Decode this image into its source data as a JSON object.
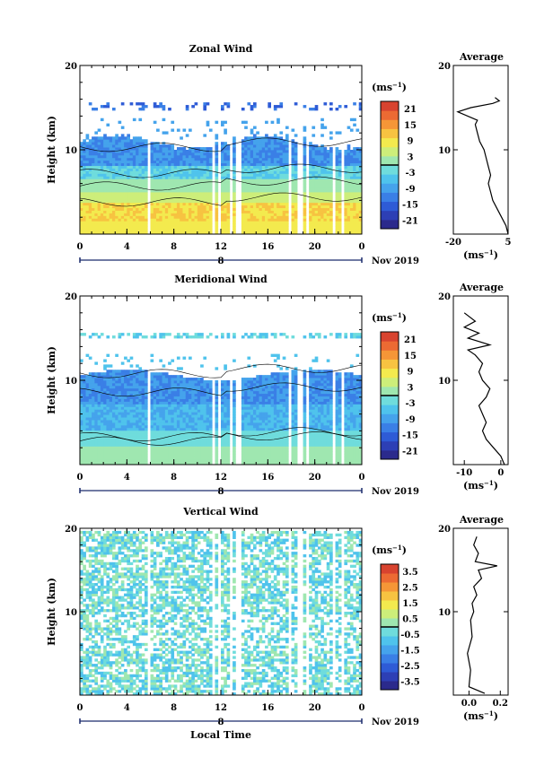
{
  "colors": {
    "scale": [
      "#2b2a8c",
      "#2d3fb5",
      "#2e5bd6",
      "#3a7fe6",
      "#45a3ec",
      "#4fc3ec",
      "#6fdcdc",
      "#9fe7b0",
      "#cdee7a",
      "#f3ea4e",
      "#f7c341",
      "#f59637",
      "#ec6a33",
      "#d8432f"
    ],
    "white": "#ffffff"
  },
  "chart_data": [
    {
      "type": "heatmap",
      "title": "Zonal Wind",
      "ylabel": "Height (km)",
      "xlabel": "",
      "x_ticks": [
        "0",
        "4",
        "8",
        "12",
        "16",
        "20",
        "0"
      ],
      "y_ticks": [
        "10",
        "20"
      ],
      "ylim": [
        0,
        20
      ],
      "xlim": [
        0,
        24
      ],
      "date_label": "8",
      "date_suffix": "Nov 2019",
      "colorbar": {
        "unit_base": "(ms",
        "unit_exp": "−1",
        "unit_close": ")",
        "ticks": [
          "21",
          "15",
          "9",
          "3",
          "-3",
          "-9",
          "-15",
          "-21"
        ],
        "zero_marker": 0
      },
      "profile": {
        "title": "Average",
        "x_ticks": [
          "-20",
          "5"
        ],
        "xlim": [
          -20,
          5
        ],
        "y_ticks": [
          "10",
          "20"
        ],
        "xlabel_base": "(ms",
        "xlabel_exp": "−1",
        "xlabel_close": ")",
        "points": [
          [
            5,
            0
          ],
          [
            4,
            1
          ],
          [
            2,
            2
          ],
          [
            0,
            3
          ],
          [
            -2,
            4
          ],
          [
            -3,
            5
          ],
          [
            -4,
            6
          ],
          [
            -3,
            7
          ],
          [
            -4,
            8
          ],
          [
            -5,
            9
          ],
          [
            -6,
            10
          ],
          [
            -8,
            11
          ],
          [
            -9,
            12
          ],
          [
            -10,
            13
          ],
          [
            -9,
            13.5
          ],
          [
            -18,
            14.5
          ],
          [
            -12,
            15
          ],
          [
            -2,
            15.5
          ],
          [
            1,
            15.8
          ],
          [
            -1,
            16.2
          ]
        ]
      }
    },
    {
      "type": "heatmap",
      "title": "Meridional Wind",
      "ylabel": "Height (km)",
      "xlabel": "",
      "x_ticks": [
        "0",
        "4",
        "8",
        "12",
        "16",
        "20",
        "0"
      ],
      "y_ticks": [
        "10",
        "20"
      ],
      "ylim": [
        0,
        20
      ],
      "xlim": [
        0,
        24
      ],
      "date_label": "8",
      "date_suffix": "Nov 2019",
      "colorbar": {
        "unit_base": "(ms",
        "unit_exp": "−1",
        "unit_close": ")",
        "ticks": [
          "21",
          "15",
          "9",
          "3",
          "-3",
          "-9",
          "-15",
          "-21"
        ],
        "zero_marker": 0
      },
      "profile": {
        "title": "Average",
        "x_ticks": [
          "-10",
          "0"
        ],
        "xlim": [
          -13,
          2
        ],
        "y_ticks": [
          "10",
          "20"
        ],
        "xlabel_base": "(ms",
        "xlabel_exp": "−1",
        "xlabel_close": ")",
        "points": [
          [
            1,
            0
          ],
          [
            0,
            1
          ],
          [
            -2,
            2
          ],
          [
            -4,
            3
          ],
          [
            -5,
            4
          ],
          [
            -4,
            5
          ],
          [
            -5,
            6
          ],
          [
            -6,
            7
          ],
          [
            -4,
            8
          ],
          [
            -3,
            9
          ],
          [
            -5,
            10
          ],
          [
            -6,
            11
          ],
          [
            -5,
            12
          ],
          [
            -7,
            13
          ],
          [
            -9,
            13.6
          ],
          [
            -3,
            14.2
          ],
          [
            -9,
            15
          ],
          [
            -6,
            15.6
          ],
          [
            -10,
            16.3
          ],
          [
            -7,
            17
          ],
          [
            -10,
            18
          ]
        ]
      }
    },
    {
      "type": "heatmap",
      "title": "Vertical Wind",
      "ylabel": "Height (km)",
      "xlabel": "Local Time",
      "x_ticks": [
        "0",
        "4",
        "8",
        "12",
        "16",
        "20",
        "0"
      ],
      "y_ticks": [
        "10",
        "20"
      ],
      "ylim": [
        0,
        20
      ],
      "xlim": [
        0,
        24
      ],
      "date_label": "8",
      "date_suffix": "Nov 2019",
      "colorbar": {
        "unit_base": "(ms",
        "unit_exp": "−1",
        "unit_close": ")",
        "ticks": [
          "3.5",
          "2.5",
          "1.5",
          "0.5",
          "-0.5",
          "-1.5",
          "-2.5",
          "-3.5"
        ],
        "zero_marker": 0
      },
      "profile": {
        "title": "Average",
        "x_ticks": [
          "0.0",
          "0.2"
        ],
        "xlim": [
          -0.1,
          0.25
        ],
        "y_ticks": [
          "10",
          "20"
        ],
        "xlabel_base": "(ms",
        "xlabel_exp": "−1",
        "xlabel_close": ")",
        "points": [
          [
            0.1,
            0.2
          ],
          [
            0,
            1
          ],
          [
            0.01,
            3
          ],
          [
            -0.01,
            5
          ],
          [
            0.02,
            7
          ],
          [
            0.01,
            9
          ],
          [
            0.03,
            10
          ],
          [
            0.02,
            11
          ],
          [
            0.05,
            12
          ],
          [
            0.03,
            13
          ],
          [
            0.08,
            14
          ],
          [
            0.06,
            15
          ],
          [
            0.18,
            15.5
          ],
          [
            0.04,
            16
          ],
          [
            0.06,
            17
          ],
          [
            0.03,
            18
          ],
          [
            0.05,
            19
          ]
        ]
      }
    }
  ]
}
